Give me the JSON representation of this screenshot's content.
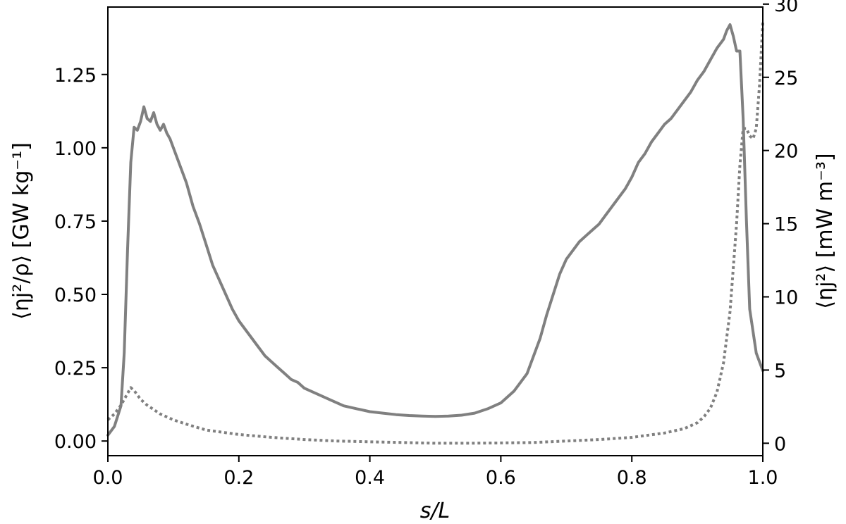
{
  "chart_data": {
    "type": "line",
    "title": "",
    "xlabel": "s/L",
    "xlim": [
      0.0,
      1.0
    ],
    "ylabel_left": "⟨ηj²/ρ⟩ [GW kg⁻¹]",
    "ylim_left": [
      -0.05,
      1.48
    ],
    "ylabel_right": "⟨ηj²⟩ [mW m⁻³]",
    "ylim_right": [
      -0.85,
      29.8
    ],
    "grid": false,
    "legend": "none",
    "x_ticks": [
      {
        "value": 0.0,
        "label": "0.0"
      },
      {
        "value": 0.2,
        "label": "0.2"
      },
      {
        "value": 0.4,
        "label": "0.4"
      },
      {
        "value": 0.6,
        "label": "0.6"
      },
      {
        "value": 0.8,
        "label": "0.8"
      },
      {
        "value": 1.0,
        "label": "1.0"
      }
    ],
    "y_ticks_left": [
      {
        "value": 0.0,
        "label": "0.00"
      },
      {
        "value": 0.25,
        "label": "0.25"
      },
      {
        "value": 0.5,
        "label": "0.50"
      },
      {
        "value": 0.75,
        "label": "0.75"
      },
      {
        "value": 1.0,
        "label": "1.00"
      },
      {
        "value": 1.25,
        "label": "1.25"
      }
    ],
    "y_ticks_right": [
      {
        "value": 0,
        "label": "0"
      },
      {
        "value": 5,
        "label": "5"
      },
      {
        "value": 10,
        "label": "10"
      },
      {
        "value": 15,
        "label": "15"
      },
      {
        "value": 20,
        "label": "20"
      },
      {
        "value": 25,
        "label": "25"
      },
      {
        "value": 30,
        "label": "30"
      }
    ],
    "series": [
      {
        "axis": "left",
        "style": "solid",
        "color": "#808080",
        "x": [
          0.0,
          0.01,
          0.02,
          0.025,
          0.03,
          0.035,
          0.04,
          0.045,
          0.05,
          0.055,
          0.06,
          0.065,
          0.07,
          0.075,
          0.08,
          0.085,
          0.09,
          0.095,
          0.1,
          0.11,
          0.12,
          0.13,
          0.14,
          0.15,
          0.16,
          0.17,
          0.18,
          0.19,
          0.2,
          0.21,
          0.22,
          0.23,
          0.24,
          0.25,
          0.26,
          0.27,
          0.28,
          0.29,
          0.3,
          0.32,
          0.34,
          0.36,
          0.38,
          0.4,
          0.42,
          0.44,
          0.46,
          0.48,
          0.5,
          0.52,
          0.54,
          0.56,
          0.58,
          0.6,
          0.62,
          0.64,
          0.66,
          0.67,
          0.68,
          0.69,
          0.7,
          0.71,
          0.72,
          0.73,
          0.74,
          0.75,
          0.76,
          0.77,
          0.78,
          0.79,
          0.8,
          0.81,
          0.82,
          0.83,
          0.84,
          0.85,
          0.86,
          0.87,
          0.88,
          0.89,
          0.9,
          0.91,
          0.92,
          0.93,
          0.94,
          0.945,
          0.95,
          0.955,
          0.96,
          0.965,
          0.97,
          0.975,
          0.98,
          0.99,
          1.0
        ],
        "y": [
          0.02,
          0.05,
          0.12,
          0.3,
          0.65,
          0.95,
          1.07,
          1.06,
          1.09,
          1.14,
          1.1,
          1.09,
          1.12,
          1.08,
          1.06,
          1.08,
          1.05,
          1.03,
          1.0,
          0.94,
          0.88,
          0.8,
          0.74,
          0.67,
          0.6,
          0.55,
          0.5,
          0.45,
          0.41,
          0.38,
          0.35,
          0.32,
          0.29,
          0.27,
          0.25,
          0.23,
          0.21,
          0.2,
          0.18,
          0.16,
          0.14,
          0.12,
          0.11,
          0.1,
          0.095,
          0.09,
          0.087,
          0.085,
          0.084,
          0.085,
          0.088,
          0.095,
          0.11,
          0.13,
          0.17,
          0.23,
          0.35,
          0.43,
          0.5,
          0.57,
          0.62,
          0.65,
          0.68,
          0.7,
          0.72,
          0.74,
          0.77,
          0.8,
          0.83,
          0.86,
          0.9,
          0.95,
          0.98,
          1.02,
          1.05,
          1.08,
          1.1,
          1.13,
          1.16,
          1.19,
          1.23,
          1.26,
          1.3,
          1.34,
          1.37,
          1.4,
          1.42,
          1.38,
          1.33,
          1.33,
          1.1,
          0.75,
          0.45,
          0.3,
          0.24
        ]
      },
      {
        "axis": "right",
        "style": "dotted",
        "color": "#808080",
        "x": [
          0.0,
          0.01,
          0.02,
          0.03,
          0.035,
          0.04,
          0.05,
          0.06,
          0.08,
          0.1,
          0.12,
          0.15,
          0.2,
          0.25,
          0.3,
          0.35,
          0.4,
          0.45,
          0.5,
          0.55,
          0.6,
          0.65,
          0.7,
          0.75,
          0.8,
          0.85,
          0.88,
          0.9,
          0.91,
          0.92,
          0.93,
          0.94,
          0.95,
          0.96,
          0.965,
          0.97,
          0.975,
          0.98,
          0.985,
          0.99,
          0.995,
          1.0
        ],
        "y": [
          1.6,
          2.0,
          2.6,
          3.4,
          3.8,
          3.6,
          3.0,
          2.6,
          2.0,
          1.6,
          1.3,
          0.9,
          0.6,
          0.4,
          0.25,
          0.15,
          0.1,
          0.05,
          0.0,
          0.0,
          0.02,
          0.05,
          0.15,
          0.25,
          0.4,
          0.7,
          1.0,
          1.4,
          1.8,
          2.4,
          3.5,
          5.5,
          9.0,
          15.0,
          19.0,
          21.5,
          21.5,
          21.0,
          20.8,
          21.5,
          24.5,
          28.8
        ]
      }
    ]
  }
}
